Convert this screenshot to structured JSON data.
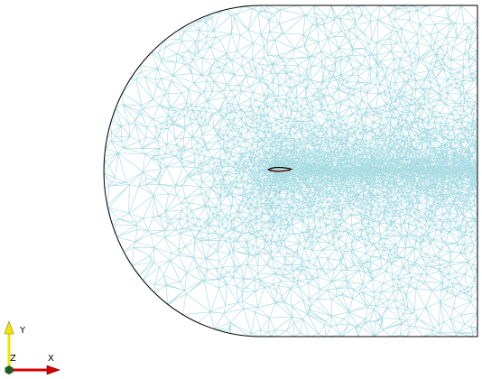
{
  "viewport": {
    "background": "#ffffff",
    "mesh_color": "#9fd8e0",
    "boundary_color": "#000000"
  },
  "airfoil": {
    "outline_color": "#000000",
    "upper_surface_color": "#2e7d32",
    "lower_surface_color": "#c62828"
  },
  "triad": {
    "y_label": "Y",
    "z_label": "Z",
    "x_label": "X",
    "y_color": "#f2e600",
    "x_color": "#d40000",
    "origin_color": "#1b5e20"
  }
}
